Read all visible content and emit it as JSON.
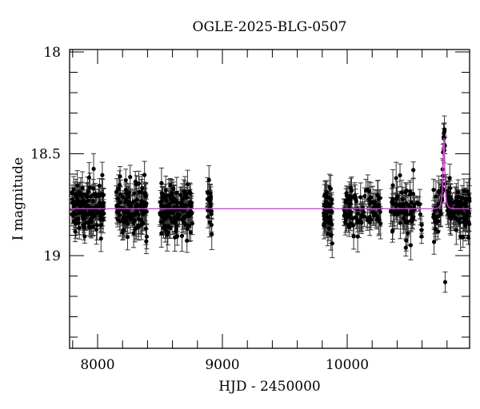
{
  "chart_data": {
    "type": "scatter",
    "title": "OGLE-2025-BLG-0507",
    "xlabel": "HJD - 2450000",
    "ylabel": "I magnitude",
    "xlim": [
      7780,
      10990
    ],
    "ylim": [
      18.0,
      19.45
    ],
    "y_inverted": true,
    "x_major_ticks": [
      8000,
      9000,
      10000
    ],
    "x_tick_labels": [
      "8000",
      "9000",
      "10000"
    ],
    "x_minor_step": 200,
    "y_major_ticks": [
      18,
      18.5,
      19
    ],
    "y_tick_labels": [
      "18",
      "18.5",
      "19"
    ],
    "y_minor_step": 0.1,
    "grid": false,
    "legend": null,
    "colors": {
      "points": "#000000",
      "errorbars": "#333333",
      "model": "#e23be2",
      "frame": "#000000"
    },
    "model": {
      "name": "microlensing fit",
      "baseline_mag": 18.77,
      "peak_time": 10775,
      "peak_mag": 18.42,
      "tE_approx": 18
    },
    "seasons": [
      {
        "start": 7785,
        "end": 8050,
        "mean_mag": 18.77,
        "scatter": 0.06,
        "n": 140
      },
      {
        "start": 8150,
        "end": 8400,
        "mean_mag": 18.77,
        "scatter": 0.06,
        "n": 130
      },
      {
        "start": 8500,
        "end": 8760,
        "mean_mag": 18.77,
        "scatter": 0.06,
        "n": 150
      },
      {
        "start": 8880,
        "end": 8915,
        "mean_mag": 18.77,
        "scatter": 0.06,
        "n": 22
      },
      {
        "start": 9810,
        "end": 9880,
        "mean_mag": 18.77,
        "scatter": 0.06,
        "n": 50
      },
      {
        "start": 9970,
        "end": 10270,
        "mean_mag": 18.77,
        "scatter": 0.06,
        "n": 90
      },
      {
        "start": 10350,
        "end": 10600,
        "mean_mag": 18.77,
        "scatter": 0.06,
        "n": 80
      },
      {
        "start": 10690,
        "end": 10990,
        "mean_mag": 18.77,
        "scatter": 0.06,
        "n": 140
      }
    ],
    "notable_points": [
      {
        "x": 10775,
        "y": 18.4,
        "err": 0.05,
        "label": "peak"
      },
      {
        "x": 10785,
        "y": 19.13,
        "err": 0.05,
        "label": "outlier"
      },
      {
        "x": 10530,
        "y": 18.58,
        "err": 0.04
      },
      {
        "x": 9880,
        "y": 18.94,
        "err": 0.07
      },
      {
        "x": 8390,
        "y": 18.93,
        "err": 0.06
      }
    ]
  }
}
